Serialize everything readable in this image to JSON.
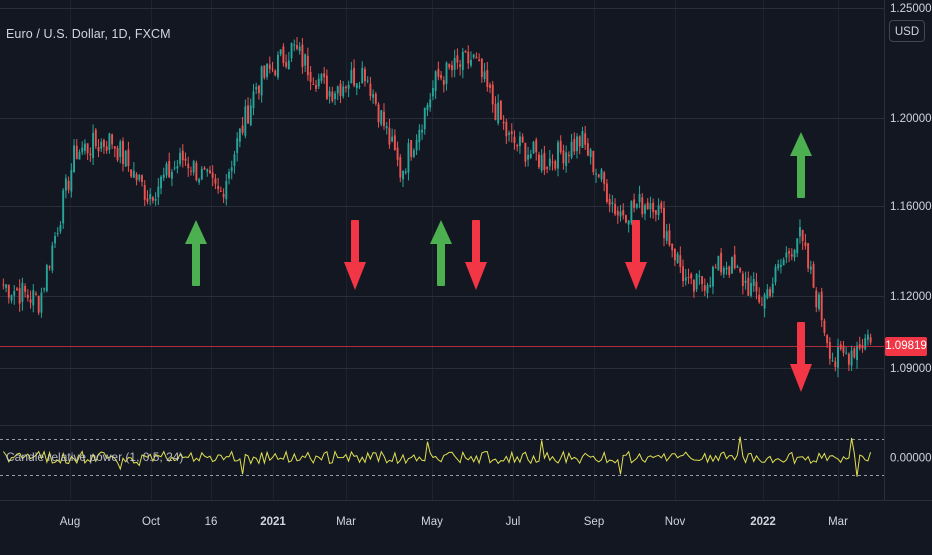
{
  "header": {
    "title": "Euro / U.S. Dollar, 1D, FXCM"
  },
  "currency_button": "USD",
  "last_price_label": "1.09819",
  "indicator": {
    "label": "Candle relative power (1, 0.5, 24)",
    "zero_label": "0.00000"
  },
  "colors": {
    "background": "#131722",
    "grid": "#2a2e39",
    "text": "#d1d4dc",
    "up": "#26a69a",
    "down": "#ef5350",
    "arrow_up": "#4caf50",
    "arrow_down": "#f23645",
    "indicator": "#e0e050"
  },
  "chart_data": [
    {
      "type": "candlestick",
      "title": "Euro / U.S. Dollar, 1D, FXCM",
      "y_axis_ticks": [
        "1.25000",
        "1.20000",
        "1.16000",
        "1.12000",
        "1.09000"
      ],
      "x_axis_ticks": [
        "Aug",
        "Oct",
        "16",
        "2021",
        "Mar",
        "May",
        "Jul",
        "Sep",
        "Nov",
        "2022",
        "Mar"
      ],
      "last_price": 1.09819,
      "price_path": [
        {
          "date": "Jul 2020",
          "close": 1.125
        },
        {
          "date": "mid Jul 2020",
          "close": 1.118
        },
        {
          "date": "Aug 2020",
          "close": 1.185
        },
        {
          "date": "Sep 2020",
          "close": 1.19
        },
        {
          "date": "late Sep 2020",
          "close": 1.165
        },
        {
          "date": "Oct 2020",
          "close": 1.182
        },
        {
          "date": "early Nov 2020",
          "close": 1.165
        },
        {
          "date": "Dec 2020",
          "close": 1.215
        },
        {
          "date": "Jan 2021",
          "close": 1.232
        },
        {
          "date": "Feb 2021",
          "close": 1.212
        },
        {
          "date": "Mar 2021",
          "close": 1.222
        },
        {
          "date": "late Mar 2021",
          "close": 1.175
        },
        {
          "date": "May 2021",
          "close": 1.218
        },
        {
          "date": "Jun 2021",
          "close": 1.227
        },
        {
          "date": "Jul 2021",
          "close": 1.19
        },
        {
          "date": "Aug 2021",
          "close": 1.18
        },
        {
          "date": "Sep 2021",
          "close": 1.19
        },
        {
          "date": "Oct 2021",
          "close": 1.157
        },
        {
          "date": "Nov 2021",
          "close": 1.163
        },
        {
          "date": "late Nov 2021",
          "close": 1.122
        },
        {
          "date": "Jan 2022",
          "close": 1.135
        },
        {
          "date": "Feb 2022",
          "close": 1.118
        },
        {
          "date": "mid Feb 2022",
          "close": 1.148
        },
        {
          "date": "Mar 2022",
          "close": 1.092
        },
        {
          "date": "late Mar 2022",
          "close": 1.104
        }
      ],
      "signals": [
        {
          "type": "up",
          "date": "Oct 2020"
        },
        {
          "type": "down",
          "date": "Mar 2021"
        },
        {
          "type": "up",
          "date": "Jun 2021"
        },
        {
          "type": "down",
          "date": "Jun 2021"
        },
        {
          "type": "down",
          "date": "Oct 2021"
        },
        {
          "type": "up",
          "date": "Feb 2022"
        },
        {
          "type": "down",
          "date": "Feb 2022"
        }
      ]
    },
    {
      "type": "line",
      "name": "Candle relative power (1, 0.5, 24)",
      "y_axis_ticks": [
        "0.00000"
      ],
      "zero_line": 0.0,
      "band": [
        -1,
        1
      ],
      "description": "noisy oscillator around zero with occasional spikes"
    }
  ]
}
